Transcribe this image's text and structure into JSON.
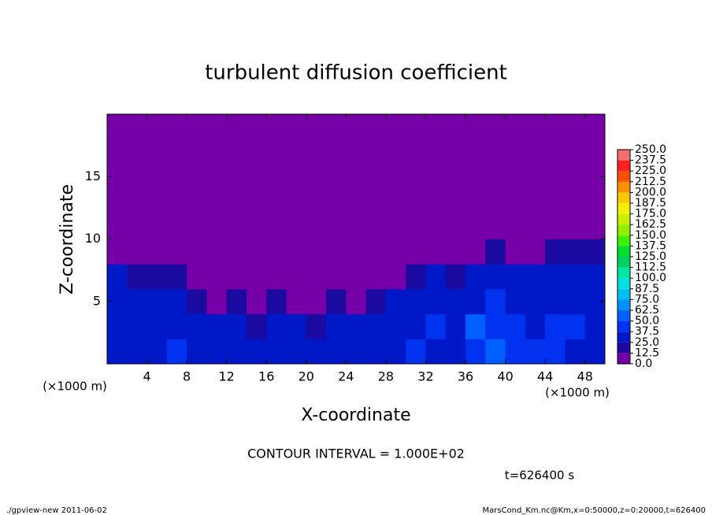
{
  "chart_data": {
    "type": "heatmap",
    "title": "turbulent diffusion coefficient",
    "x_label": "X-coordinate",
    "y_label": "Z-coordinate",
    "x_unit": "(×1000 m)",
    "y_unit": "(×1000 m)",
    "annotation": "CONTOUR INTERVAL = 1.000E+02",
    "time_label": "t=626400 s",
    "footer_left": "./gpview-new  2011-06-02",
    "footer_right": "MarsCond_Km.nc@Km,x=0:50000,z=0:20000,t=626400",
    "xlim": [
      0,
      50
    ],
    "ylim": [
      0,
      20
    ],
    "xticks": [
      4,
      8,
      12,
      16,
      20,
      24,
      28,
      32,
      36,
      40,
      44,
      48
    ],
    "yticks": [
      5,
      10,
      15
    ],
    "x": [
      1,
      3,
      5,
      7,
      9,
      11,
      13,
      15,
      17,
      19,
      21,
      23,
      25,
      27,
      29,
      31,
      33,
      35,
      37,
      39,
      41,
      43,
      45,
      47,
      49
    ],
    "z": [
      1,
      3,
      5,
      7,
      9,
      11,
      13,
      15,
      17,
      19
    ],
    "z_values": [
      [
        30,
        35,
        30,
        40,
        35,
        30,
        25,
        35,
        30,
        25,
        30,
        25,
        30,
        35,
        30,
        40,
        35,
        30,
        45,
        55,
        40,
        45,
        40,
        35,
        30
      ],
      [
        35,
        30,
        35,
        30,
        30,
        25,
        30,
        20,
        25,
        30,
        20,
        25,
        30,
        35,
        30,
        35,
        40,
        35,
        50,
        45,
        40,
        35,
        45,
        40,
        35
      ],
      [
        30,
        30,
        25,
        25,
        20,
        10,
        15,
        10,
        15,
        10,
        10,
        15,
        10,
        20,
        25,
        30,
        35,
        30,
        35,
        40,
        35,
        30,
        35,
        35,
        30
      ],
      [
        25,
        20,
        20,
        20,
        10,
        0,
        0,
        0,
        0,
        0,
        0,
        0,
        0,
        0,
        5,
        20,
        25,
        20,
        30,
        30,
        25,
        25,
        30,
        30,
        25
      ],
      [
        10,
        5,
        0,
        0,
        0,
        0,
        0,
        0,
        0,
        0,
        0,
        0,
        0,
        0,
        0,
        0,
        0,
        0,
        5,
        15,
        10,
        10,
        15,
        15,
        15
      ],
      [
        0,
        0,
        0,
        0,
        0,
        0,
        0,
        0,
        0,
        0,
        0,
        0,
        0,
        0,
        0,
        0,
        0,
        0,
        0,
        0,
        0,
        0,
        0,
        0,
        0
      ],
      [
        0,
        0,
        0,
        0,
        0,
        0,
        0,
        0,
        0,
        0,
        0,
        0,
        0,
        0,
        0,
        0,
        0,
        0,
        0,
        0,
        0,
        0,
        0,
        0,
        0
      ],
      [
        0,
        0,
        0,
        0,
        0,
        0,
        0,
        0,
        0,
        0,
        0,
        0,
        0,
        0,
        0,
        0,
        0,
        0,
        0,
        0,
        0,
        0,
        0,
        0,
        0
      ],
      [
        0,
        0,
        0,
        0,
        0,
        0,
        0,
        0,
        0,
        0,
        0,
        0,
        0,
        0,
        0,
        0,
        0,
        0,
        0,
        0,
        0,
        0,
        0,
        0,
        0
      ],
      [
        0,
        0,
        0,
        0,
        0,
        0,
        0,
        0,
        0,
        0,
        0,
        0,
        0,
        0,
        0,
        0,
        0,
        0,
        0,
        0,
        0,
        0,
        0,
        0,
        0
      ]
    ],
    "levels": [
      {
        "value": 0,
        "label": "0.0"
      },
      {
        "value": 12.5,
        "label": "12.5"
      },
      {
        "value": 25,
        "label": "25.0"
      },
      {
        "value": 37.5,
        "label": "37.5"
      },
      {
        "value": 50,
        "label": "50.0"
      },
      {
        "value": 62.5,
        "label": "62.5"
      },
      {
        "value": 75,
        "label": "75.0"
      },
      {
        "value": 87.5,
        "label": "87.5"
      },
      {
        "value": 100,
        "label": "100.0"
      },
      {
        "value": 112.5,
        "label": "112.5"
      },
      {
        "value": 125,
        "label": "125.0"
      },
      {
        "value": 137.5,
        "label": "137.5"
      },
      {
        "value": 150,
        "label": "150.0"
      },
      {
        "value": 162.5,
        "label": "162.5"
      },
      {
        "value": 175,
        "label": "175.0"
      },
      {
        "value": 187.5,
        "label": "187.5"
      },
      {
        "value": 200,
        "label": "200.0"
      },
      {
        "value": 212.5,
        "label": "212.5"
      },
      {
        "value": 225,
        "label": "225.0"
      },
      {
        "value": 237.5,
        "label": "237.5"
      },
      {
        "value": 250,
        "label": "250.0"
      }
    ],
    "colors": [
      "#7600a8",
      "#1a0aa0",
      "#0018c8",
      "#0032f0",
      "#0060ff",
      "#0090ff",
      "#00c0f0",
      "#00e0e0",
      "#00e8a0",
      "#00d060",
      "#00e030",
      "#40f000",
      "#90f000",
      "#c8f000",
      "#f0f000",
      "#ffc800",
      "#ff9000",
      "#ff5000",
      "#ff2020",
      "#f07070"
    ]
  }
}
